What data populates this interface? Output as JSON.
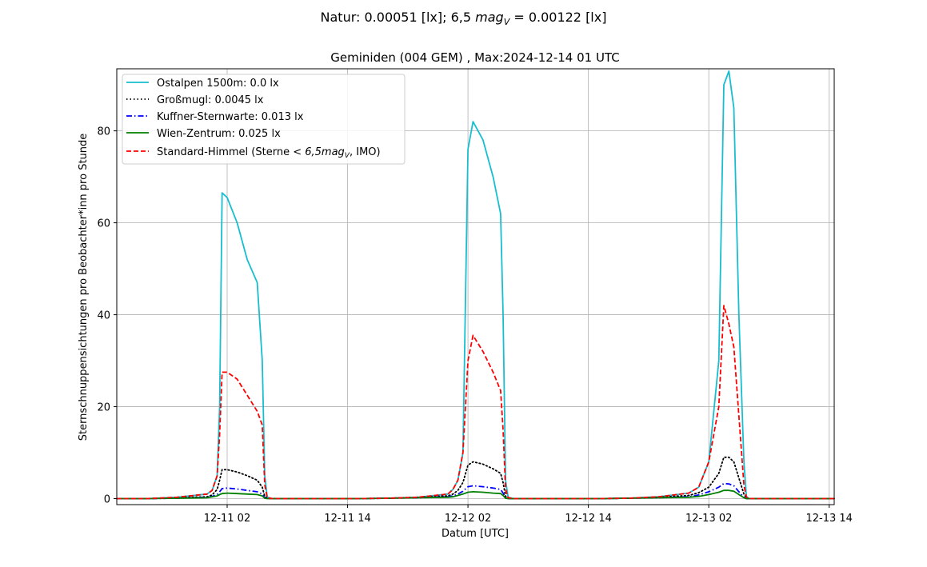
{
  "figure": {
    "suptitle_prefix": "Natur: 0.00051 [lx]; 6,5 ",
    "suptitle_mag": "mag",
    "suptitle_sub": "V",
    "suptitle_suffix": " = 0.00122 [lx]"
  },
  "chart_data": {
    "type": "line",
    "title": "Geminiden (004 GEM) , Max:2024-12-14 01 UTC",
    "xlabel": "Datum [UTC]",
    "ylabel": "Sternschnuppensichtungen pro Beobachter*inn pro Stunde",
    "x_unit": "UTC datetime",
    "xlim": [
      "2024-12-10 15:00",
      "2024-12-13 14:30"
    ],
    "ylim": [
      -1.3,
      93.5
    ],
    "x_ticks": [
      "2024-12-11 02:00",
      "2024-12-11 14:00",
      "2024-12-12 02:00",
      "2024-12-12 14:00",
      "2024-12-13 02:00",
      "2024-12-13 14:00"
    ],
    "x_tick_labels": [
      "12-11 02",
      "12-11 14",
      "12-12 02",
      "12-12 14",
      "12-13 02",
      "12-13 14"
    ],
    "y_ticks": [
      0,
      20,
      40,
      60,
      80
    ],
    "grid": true,
    "legend_position": "top-left",
    "x": [
      "2024-12-10 15:00",
      "2024-12-10 18:00",
      "2024-12-10 21:00",
      "2024-12-11 00:00",
      "2024-12-11 00:30",
      "2024-12-11 01:00",
      "2024-12-11 01:15",
      "2024-12-11 01:30",
      "2024-12-11 02:00",
      "2024-12-11 03:00",
      "2024-12-11 04:00",
      "2024-12-11 05:00",
      "2024-12-11 05:30",
      "2024-12-11 05:45",
      "2024-12-11 06:00",
      "2024-12-11 06:30",
      "2024-12-11 09:00",
      "2024-12-11 12:00",
      "2024-12-11 15:00",
      "2024-12-11 18:00",
      "2024-12-11 21:00",
      "2024-12-12 00:00",
      "2024-12-12 00:30",
      "2024-12-12 01:00",
      "2024-12-12 01:30",
      "2024-12-12 02:00",
      "2024-12-12 02:30",
      "2024-12-12 03:30",
      "2024-12-12 04:30",
      "2024-12-12 05:15",
      "2024-12-12 05:30",
      "2024-12-12 05:45",
      "2024-12-12 06:00",
      "2024-12-12 06:30",
      "2024-12-12 09:00",
      "2024-12-12 12:00",
      "2024-12-12 15:00",
      "2024-12-12 18:00",
      "2024-12-12 21:00",
      "2024-12-13 00:00",
      "2024-12-13 01:00",
      "2024-12-13 02:00",
      "2024-12-13 03:00",
      "2024-12-13 03:30",
      "2024-12-13 04:00",
      "2024-12-13 04:30",
      "2024-12-13 05:00",
      "2024-12-13 05:30",
      "2024-12-13 05:45",
      "2024-12-13 06:00",
      "2024-12-13 06:30",
      "2024-12-13 09:00",
      "2024-12-13 12:00",
      "2024-12-13 14:30"
    ],
    "series": [
      {
        "name": "Ostalpen 1500m: 0.0 lx",
        "color": "#17becf",
        "dash": "solid",
        "values": [
          0,
          0,
          0.3,
          1,
          1.8,
          5,
          20,
          66.5,
          65.5,
          60,
          52,
          47,
          30,
          5,
          0.3,
          0,
          0,
          0,
          0,
          0.1,
          0.3,
          1,
          2,
          4,
          10,
          76,
          82,
          78,
          70,
          62,
          40,
          4,
          0.3,
          0,
          0,
          0,
          0,
          0.1,
          0.4,
          1.2,
          2.5,
          8,
          30,
          90,
          93,
          85,
          40,
          8,
          0.5,
          0,
          0,
          0,
          0,
          0
        ]
      },
      {
        "name": "Großmugl: 0.0045 lx",
        "color": "#000000",
        "dash": "dotted",
        "values": [
          0,
          0,
          0.2,
          0.4,
          0.8,
          2,
          4,
          6.3,
          6.3,
          5.8,
          5,
          4,
          2.5,
          0.5,
          0.1,
          0,
          0,
          0,
          0,
          0.1,
          0.3,
          0.6,
          1,
          1.8,
          3.5,
          7.3,
          8,
          7.5,
          6.5,
          5.5,
          3.5,
          0.5,
          0.1,
          0,
          0,
          0,
          0,
          0.1,
          0.3,
          0.7,
          1.3,
          2.5,
          5.5,
          9,
          9,
          8,
          4.5,
          1,
          0.2,
          0,
          0,
          0,
          0,
          0
        ]
      },
      {
        "name": "Kuffner-Sternwarte: 0.013 lx",
        "color": "#0000ff",
        "dash": "dashdot",
        "values": [
          0,
          0,
          0.1,
          0.3,
          0.5,
          0.9,
          1.5,
          2.2,
          2.3,
          2.1,
          1.8,
          1.5,
          1,
          0.2,
          0,
          0,
          0,
          0,
          0,
          0.1,
          0.2,
          0.4,
          0.6,
          1,
          1.6,
          2.6,
          2.8,
          2.6,
          2.3,
          2,
          1.2,
          0.2,
          0,
          0,
          0,
          0,
          0,
          0.1,
          0.2,
          0.4,
          0.8,
          1.5,
          2.5,
          3.3,
          3.2,
          2.8,
          1.5,
          0.3,
          0,
          0,
          0,
          0,
          0,
          0
        ]
      },
      {
        "name": "Wien-Zentrum: 0.025 lx",
        "color": "#008000",
        "dash": "solid",
        "values": [
          0,
          0,
          0.1,
          0.2,
          0.4,
          0.6,
          0.9,
          1.1,
          1.2,
          1.1,
          1,
          0.9,
          0.6,
          0.1,
          0,
          0,
          0,
          0,
          0,
          0.1,
          0.2,
          0.3,
          0.4,
          0.7,
          1,
          1.4,
          1.5,
          1.4,
          1.2,
          1.1,
          0.7,
          0.1,
          0,
          0,
          0,
          0,
          0,
          0.1,
          0.2,
          0.3,
          0.5,
          0.9,
          1.4,
          1.8,
          1.8,
          1.6,
          0.9,
          0.2,
          0,
          0,
          0,
          0,
          0,
          0
        ]
      },
      {
        "name": "Standard-Himmel (Sterne",
        "color": "#ff0000",
        "dash": "dashed",
        "values": [
          0,
          0,
          0.3,
          1,
          1.8,
          5,
          14,
          27.5,
          27.5,
          26,
          22.5,
          19,
          16,
          3,
          0.2,
          0,
          0,
          0,
          0,
          0.1,
          0.3,
          1,
          2,
          4,
          10,
          30,
          35.5,
          32,
          27.5,
          23.5,
          15,
          2,
          0.2,
          0,
          0,
          0,
          0,
          0.1,
          0.4,
          1.2,
          2.5,
          8,
          20,
          42,
          38,
          33,
          18,
          3,
          0.3,
          0,
          0,
          0,
          0,
          0
        ]
      }
    ],
    "legend_math": {
      "lt": "<",
      "number": "6,5",
      "mag": "mag",
      "sub": "V",
      "tail": ", IMO)"
    }
  }
}
